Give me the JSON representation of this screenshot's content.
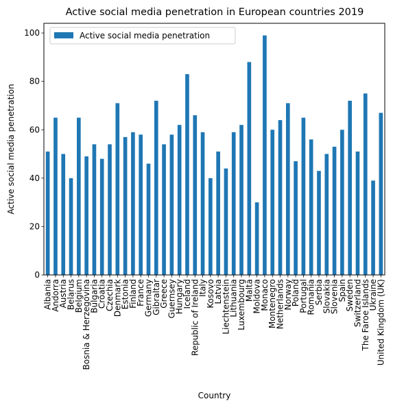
{
  "chart_data": {
    "type": "bar",
    "title": "Active social media penetration in European countries 2019",
    "xlabel": "Country",
    "ylabel": "Active social media penetration",
    "ylim": [
      0,
      104
    ],
    "yticks": [
      0,
      20,
      40,
      60,
      80,
      100
    ],
    "grid": false,
    "legend_position": "top-left",
    "bar_color": "#1f77b4",
    "categories": [
      "Albania",
      "Andorra",
      "Austria",
      "Belarus",
      "Belgium",
      "Bosnia & Herzegovina",
      "Bulgaria",
      "Croatia",
      "Czechia",
      "Denmark",
      "Estonia",
      "Finland",
      "France",
      "Germany",
      "Gibraltar",
      "Greece",
      "Guernsey",
      "Hungary",
      "Iceland",
      "Republic of Ireland",
      "Italy",
      "Kosovo",
      "Latvia",
      "Liechtenstein",
      "Lithuania",
      "Luxembourg",
      "Malta",
      "Moldova",
      "Monaco",
      "Montenegro",
      "Netherlands",
      "Norway",
      "Poland",
      "Portugal",
      "Romania",
      "Serbia",
      "Slovakia",
      "Slovenia",
      "Spain",
      "Sweden",
      "Switzerland",
      "The Faroe Islands",
      "Ukraine",
      "United Kingdom (UK)"
    ],
    "series": [
      {
        "name": "Active social media penetration",
        "values": [
          51,
          65,
          50,
          40,
          65,
          49,
          54,
          48,
          54,
          71,
          57,
          59,
          58,
          46,
          72,
          54,
          58,
          62,
          83,
          66,
          59,
          40,
          51,
          44,
          59,
          62,
          88,
          30,
          99,
          60,
          64,
          71,
          47,
          65,
          56,
          43,
          50,
          53,
          60,
          72,
          51,
          75,
          39,
          67
        ]
      }
    ]
  }
}
